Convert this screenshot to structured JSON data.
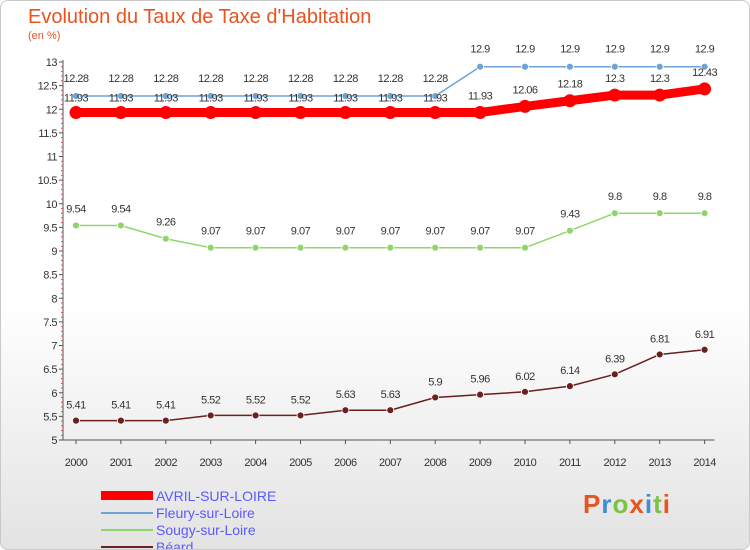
{
  "header": {
    "title": "Evolution du Taux de Taxe d'Habitation",
    "unit": "(en %)"
  },
  "logo": {
    "text": "Proxiti",
    "colors": [
      "#e8531e",
      "#3a8fd6",
      "#7cc243",
      "#e8531e",
      "#3a8fd6",
      "#7cc243",
      "#e8531e"
    ]
  },
  "chart_data": {
    "type": "line",
    "title": "Evolution du Taux de Taxe d'Habitation",
    "ylabel": "(en %)",
    "xlabel": "",
    "ylim": [
      5,
      13
    ],
    "yticks": [
      "5",
      "5.5",
      "6",
      "6.5",
      "7",
      "7.5",
      "8",
      "8.5",
      "9",
      "9.5",
      "10",
      "10.5",
      "11",
      "11.5",
      "12",
      "12.5",
      "13"
    ],
    "x": [
      "2000",
      "2001",
      "2002",
      "2003",
      "2004",
      "2005",
      "2006",
      "2007",
      "2008",
      "2009",
      "2010",
      "2011",
      "2012",
      "2013",
      "2014"
    ],
    "grid": false,
    "legend_position": "bottom-left",
    "series": [
      {
        "name": "AVRIL-SUR-LOIRE",
        "color": "#ff0000",
        "values": [
          11.93,
          11.93,
          11.93,
          11.93,
          11.93,
          11.93,
          11.93,
          11.93,
          11.93,
          11.93,
          12.06,
          12.18,
          12.3,
          12.3,
          12.43
        ],
        "labels": [
          "11.93",
          "11.93",
          "11.93",
          "11.93",
          "11.93",
          "11.93",
          "11.93",
          "11.93",
          "11.93",
          "11.93",
          "12.06",
          "12.18",
          "12.3",
          "12.3",
          "12.43"
        ]
      },
      {
        "name": "Fleury-sur-Loire",
        "color": "#6fa3d6",
        "values": [
          12.28,
          12.28,
          12.28,
          12.28,
          12.28,
          12.28,
          12.28,
          12.28,
          12.28,
          12.9,
          12.9,
          12.9,
          12.9,
          12.9,
          12.9
        ],
        "labels": [
          "12.28",
          "12.28",
          "12.28",
          "12.28",
          "12.28",
          "12.28",
          "12.28",
          "12.28",
          "12.28",
          "12.9",
          "12.9",
          "12.9",
          "12.9",
          "12.9",
          "12.9"
        ]
      },
      {
        "name": "Sougy-sur-Loire",
        "color": "#8fd66a",
        "values": [
          9.54,
          9.54,
          9.26,
          9.07,
          9.07,
          9.07,
          9.07,
          9.07,
          9.07,
          9.07,
          9.07,
          9.43,
          9.8,
          9.8,
          9.8
        ],
        "labels": [
          "9.54",
          "9.54",
          "9.26",
          "9.07",
          "9.07",
          "9.07",
          "9.07",
          "9.07",
          "9.07",
          "9.07",
          "9.07",
          "9.43",
          "9.8",
          "9.8",
          "9.8"
        ]
      },
      {
        "name": "Béard",
        "color": "#6b1f1f",
        "values": [
          5.41,
          5.41,
          5.41,
          5.52,
          5.52,
          5.52,
          5.63,
          5.63,
          5.9,
          5.96,
          6.02,
          6.14,
          6.39,
          6.81,
          6.91
        ],
        "labels": [
          "5.41",
          "5.41",
          "5.41",
          "5.52",
          "5.52",
          "5.52",
          "5.63",
          "5.63",
          "5.9",
          "5.96",
          "6.02",
          "6.14",
          "6.39",
          "6.81",
          "6.91"
        ]
      }
    ]
  }
}
